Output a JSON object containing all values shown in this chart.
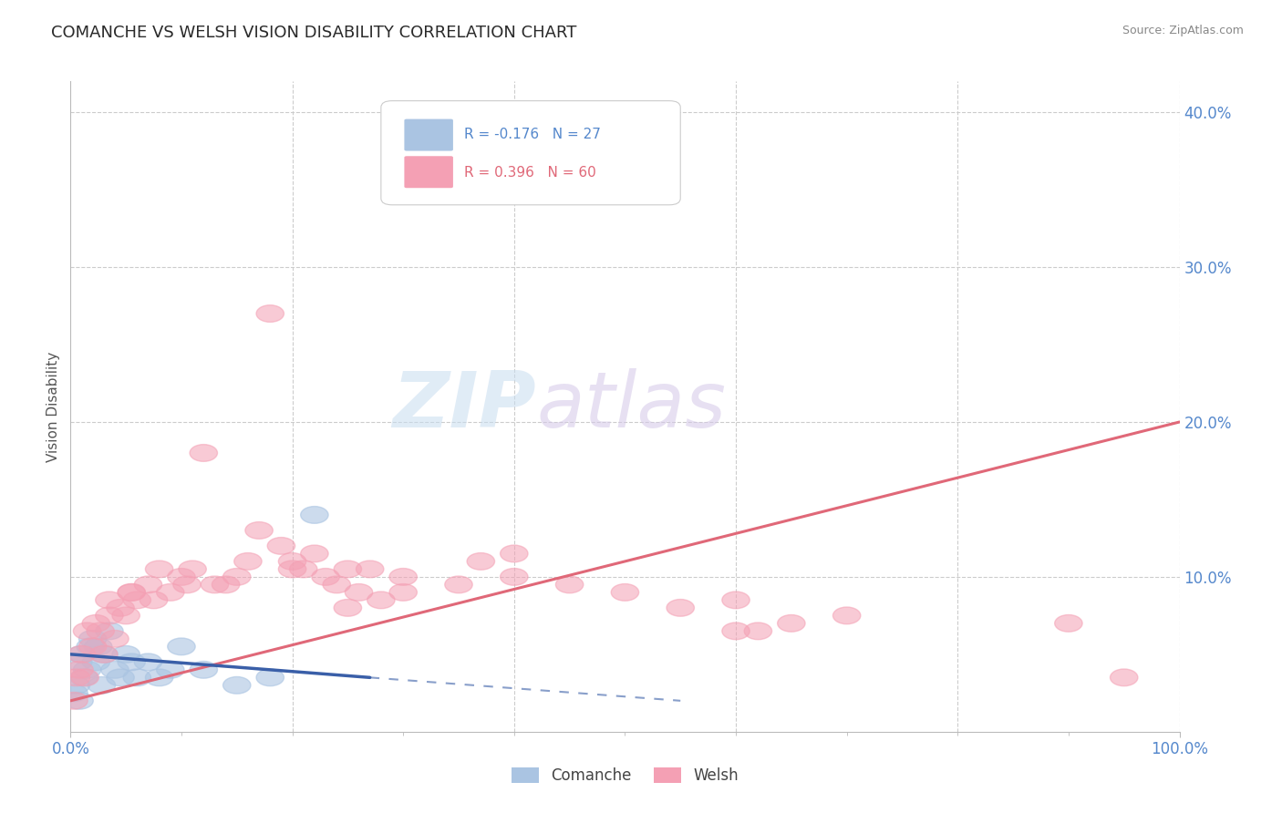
{
  "title": "COMANCHE VS WELSH VISION DISABILITY CORRELATION CHART",
  "source": "Source: ZipAtlas.com",
  "ylabel": "Vision Disability",
  "xlim": [
    0,
    100
  ],
  "ylim": [
    0,
    42
  ],
  "comanche_R": -0.176,
  "comanche_N": 27,
  "welsh_R": 0.396,
  "welsh_N": 60,
  "comanche_color": "#aac4e2",
  "welsh_color": "#f4a0b4",
  "comanche_line_color": "#3a5fa8",
  "welsh_line_color": "#e06878",
  "grid_color": "#cccccc",
  "title_color": "#2a2a2a",
  "axis_label_color": "#5588cc",
  "watermark_zip": "ZIP",
  "watermark_atlas": "atlas",
  "comanche_x": [
    0.3,
    0.5,
    0.7,
    0.8,
    1.0,
    1.2,
    1.5,
    1.8,
    2.0,
    2.3,
    2.5,
    2.8,
    3.0,
    3.5,
    4.0,
    4.5,
    5.0,
    5.5,
    6.0,
    7.0,
    8.0,
    9.0,
    10.0,
    12.0,
    15.0,
    18.0,
    22.0
  ],
  "comanche_y": [
    2.5,
    3.0,
    4.5,
    2.0,
    5.0,
    3.5,
    4.0,
    5.5,
    6.0,
    4.5,
    5.5,
    3.0,
    5.0,
    6.5,
    4.0,
    3.5,
    5.0,
    4.5,
    3.5,
    4.5,
    3.5,
    4.0,
    5.5,
    4.0,
    3.0,
    3.5,
    14.0
  ],
  "welsh_x": [
    0.3,
    0.5,
    0.8,
    1.0,
    1.3,
    1.5,
    2.0,
    2.3,
    2.7,
    3.0,
    3.5,
    4.0,
    4.5,
    5.0,
    5.5,
    6.0,
    7.0,
    8.0,
    9.0,
    10.0,
    11.0,
    12.0,
    13.0,
    15.0,
    16.0,
    17.0,
    18.0,
    19.0,
    20.0,
    21.0,
    22.0,
    23.0,
    24.0,
    25.0,
    26.0,
    27.0,
    28.0,
    30.0,
    35.0,
    37.0,
    40.0,
    45.0,
    50.0,
    55.0,
    60.0,
    65.0,
    62.0,
    70.0,
    90.0,
    95.0,
    3.5,
    5.5,
    7.5,
    10.5,
    14.0,
    20.0,
    25.0,
    30.0,
    40.0,
    60.0
  ],
  "welsh_y": [
    2.0,
    3.5,
    4.0,
    5.0,
    3.5,
    6.5,
    5.5,
    7.0,
    6.5,
    5.0,
    7.5,
    6.0,
    8.0,
    7.5,
    9.0,
    8.5,
    9.5,
    10.5,
    9.0,
    10.0,
    10.5,
    18.0,
    9.5,
    10.0,
    11.0,
    13.0,
    27.0,
    12.0,
    11.0,
    10.5,
    11.5,
    10.0,
    9.5,
    10.5,
    9.0,
    10.5,
    8.5,
    9.0,
    9.5,
    11.0,
    10.0,
    9.5,
    9.0,
    8.0,
    8.5,
    7.0,
    6.5,
    7.5,
    7.0,
    3.5,
    8.5,
    9.0,
    8.5,
    9.5,
    9.5,
    10.5,
    8.0,
    10.0,
    11.5,
    6.5
  ],
  "welsh_line_start_x": 0,
  "welsh_line_start_y": 2.0,
  "welsh_line_end_x": 100,
  "welsh_line_end_y": 20.0,
  "comanche_line_start_x": 0,
  "comanche_line_start_y": 5.0,
  "comanche_line_end_x": 27,
  "comanche_line_end_y": 3.5,
  "comanche_dash_start_x": 27,
  "comanche_dash_start_y": 3.5,
  "comanche_dash_end_x": 55,
  "comanche_dash_end_y": 2.0
}
